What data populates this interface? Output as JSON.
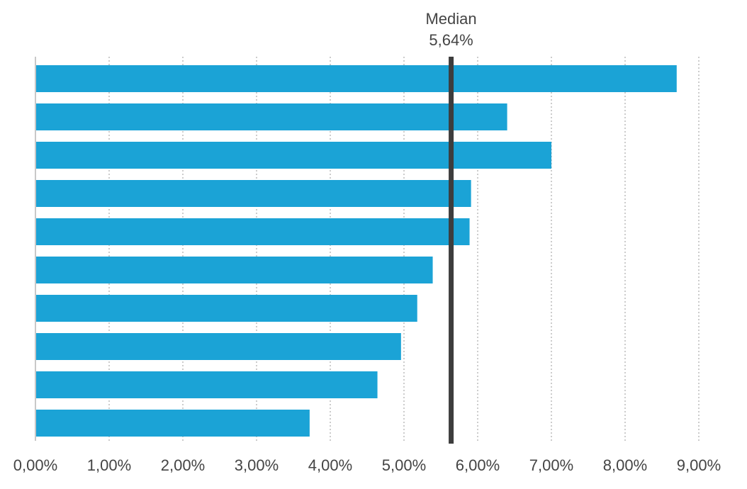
{
  "chart_data": {
    "type": "bar",
    "orientation": "horizontal",
    "values": [
      8.7,
      6.4,
      7.0,
      5.91,
      5.89,
      5.39,
      5.18,
      4.96,
      4.64,
      3.72
    ],
    "xlim": [
      0,
      9
    ],
    "x_ticks": [
      0,
      1,
      2,
      3,
      4,
      5,
      6,
      7,
      8,
      9
    ],
    "x_tick_labels": [
      "0,00%",
      "1,00%",
      "2,00%",
      "3,00%",
      "4,00%",
      "5,00%",
      "6,00%",
      "7,00%",
      "8,00%",
      "9,00%"
    ],
    "grid": "vertical dotted",
    "reference_line": {
      "value": 5.64,
      "label": "Median",
      "value_label": "5,64%"
    },
    "colors": {
      "bar": "#1ba3d6",
      "reference_line": "#3d3d3d",
      "text": "#444444"
    }
  }
}
